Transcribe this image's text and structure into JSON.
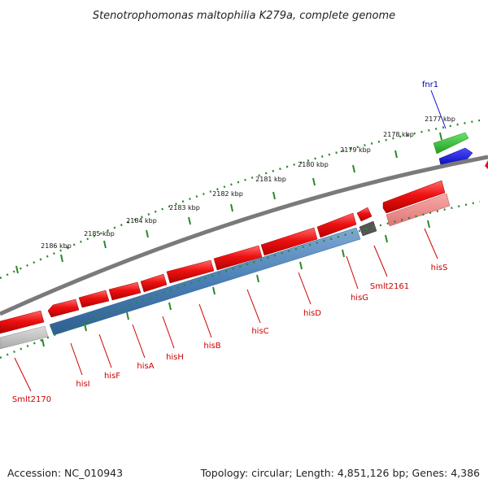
{
  "title": "Stenotrophomonas maltophilia K279a, complete genome",
  "accession": "Accession: NC_010943",
  "topology": "Topology: circular; Length: 4,851,126 bp; Genes: 4,386",
  "kbp_ticks": [
    "2177 kbp",
    "2178 kbp",
    "2179 kbp",
    "2180 kbp",
    "2181 kbp",
    "2182 kbp",
    "2183 kbp",
    "2184 kbp",
    "2185 kbp",
    "2186 kbp"
  ],
  "gene_labels": {
    "fnr1": "fnr1",
    "hisS": "hisS",
    "smlt2161": "Smlt2161",
    "hisG": "hisG",
    "hisD": "hisD",
    "hisC": "hisC",
    "hisB": "hisB",
    "hisH": "hisH",
    "hisA": "hisA",
    "hisF": "hisF",
    "hisI": "hisI",
    "smlt2170": "Smlt2170"
  },
  "colors": {
    "cds": "#ee1111",
    "gene": "#4a7fb5",
    "fnr_gene": "#2ec42e",
    "fnr_cds": "#1111ee",
    "backbone": "#7a7a7a",
    "tick_dots": "#2a8a2a",
    "pseudo": "#555555",
    "label_red": "#cc0000",
    "label_blue": "#0000aa"
  }
}
